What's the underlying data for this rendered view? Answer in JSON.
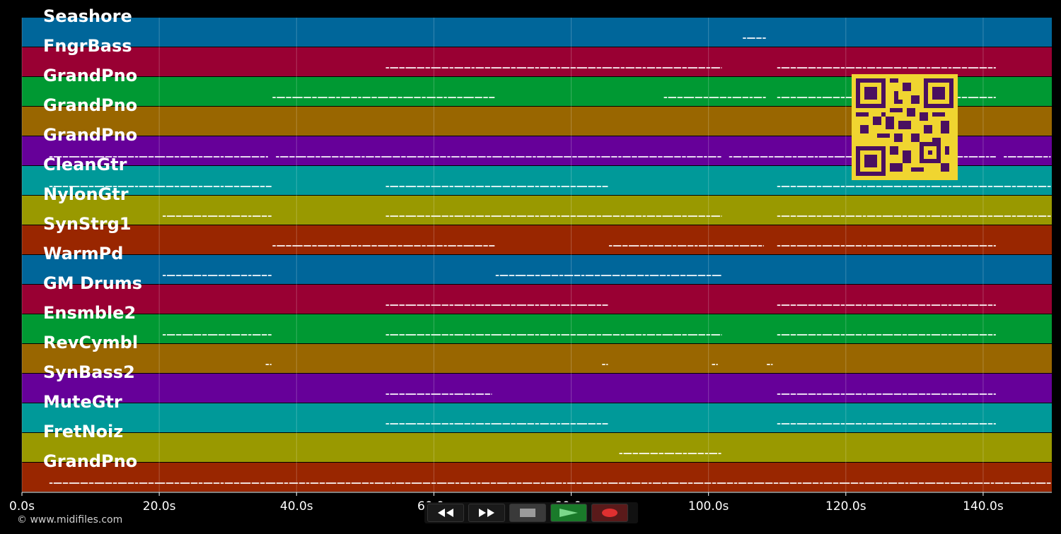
{
  "tracks": [
    {
      "name": "Seashore",
      "color": "#00669a"
    },
    {
      "name": "FngrBass",
      "color": "#990033"
    },
    {
      "name": "GrandPno",
      "color": "#009933"
    },
    {
      "name": "GrandPno",
      "color": "#996600"
    },
    {
      "name": "GrandPno",
      "color": "#660099"
    },
    {
      "name": "CleanGtr",
      "color": "#009999"
    },
    {
      "name": "NylonGtr",
      "color": "#999900"
    },
    {
      "name": "SynStrg1",
      "color": "#992600"
    },
    {
      "name": "WarmPd",
      "color": "#00669a"
    },
    {
      "name": "GM Drums",
      "color": "#990033"
    },
    {
      "name": "Ensmble2",
      "color": "#009933"
    },
    {
      "name": "RevCymbl",
      "color": "#996600"
    },
    {
      "name": "SynBass2",
      "color": "#660099"
    },
    {
      "name": "MuteGtr",
      "color": "#009999"
    },
    {
      "name": "FretNoiz",
      "color": "#999900"
    },
    {
      "name": "GrandPno",
      "color": "#992600"
    }
  ],
  "time_axis": {
    "max_seconds": 150,
    "ticks": [
      "0.0s",
      "20.0s",
      "40.0s",
      "60.0s",
      "80.0s",
      "100.0s",
      "120.0s",
      "140.0s"
    ],
    "tick_values": [
      0,
      20,
      40,
      60,
      80,
      100,
      120,
      140
    ]
  },
  "notes": [
    {
      "track": 0,
      "segments": [
        [
          105,
          108.5
        ]
      ]
    },
    {
      "track": 1,
      "segments": [
        [
          53,
          102
        ],
        [
          110,
          142
        ]
      ]
    },
    {
      "track": 2,
      "segments": [
        [
          36.5,
          69
        ],
        [
          93.5,
          108.5
        ],
        [
          110,
          142
        ]
      ]
    },
    {
      "track": 4,
      "segments": [
        [
          4,
          36
        ],
        [
          37,
          102
        ],
        [
          103,
          142
        ],
        [
          143,
          150
        ]
      ]
    },
    {
      "track": 5,
      "segments": [
        [
          4,
          36.5
        ],
        [
          53,
          85.5
        ],
        [
          110,
          150
        ]
      ]
    },
    {
      "track": 6,
      "segments": [
        [
          20.5,
          36.5
        ],
        [
          53,
          102
        ],
        [
          110,
          150
        ]
      ]
    },
    {
      "track": 7,
      "segments": [
        [
          36.5,
          69
        ],
        [
          85.5,
          108
        ],
        [
          110,
          142
        ]
      ]
    },
    {
      "track": 8,
      "segments": [
        [
          20.5,
          36.5
        ],
        [
          69,
          102
        ]
      ]
    },
    {
      "track": 9,
      "segments": [
        [
          53,
          85.5
        ],
        [
          110,
          142
        ]
      ]
    },
    {
      "track": 10,
      "segments": [
        [
          20.5,
          36.5
        ],
        [
          53,
          102
        ],
        [
          110,
          142
        ]
      ]
    },
    {
      "track": 11,
      "segments": [
        [
          35.5,
          36.5
        ],
        [
          84.5,
          85.5
        ],
        [
          100.5,
          101.5
        ],
        [
          108.5,
          109.5
        ]
      ]
    },
    {
      "track": 12,
      "segments": [
        [
          53,
          68.5
        ],
        [
          110,
          142
        ]
      ]
    },
    {
      "track": 13,
      "segments": [
        [
          53,
          85.5
        ],
        [
          110,
          142
        ]
      ]
    },
    {
      "track": 14,
      "segments": [
        [
          87,
          102
        ]
      ]
    },
    {
      "track": 15,
      "segments": [
        [
          4,
          150
        ]
      ]
    }
  ],
  "copyright": "© www.midifiles.com",
  "transport": {
    "rewind_icon": "rewind-icon",
    "forward_icon": "fast-forward-icon",
    "stop_icon": "stop-icon",
    "play_icon": "play-icon",
    "record_icon": "record-icon"
  }
}
